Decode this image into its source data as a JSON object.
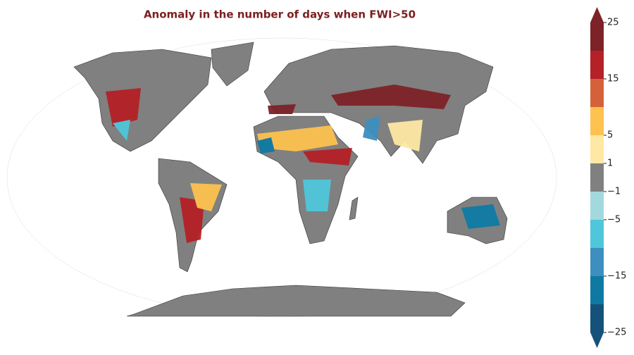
{
  "chart_data": {
    "type": "map",
    "title": "Anomaly in the number of days when FWI>50",
    "colorbar": {
      "boundaries": [
        -25,
        -20,
        -15,
        -10,
        -5,
        -1,
        1,
        5,
        10,
        15,
        20,
        25
      ],
      "colors": [
        "#15527a",
        "#0e7aa3",
        "#3d8fbf",
        "#4fc6da",
        "#a2d9de",
        "#808080",
        "#ffe8a3",
        "#fdc24f",
        "#d5613a",
        "#b42126",
        "#7d2227"
      ],
      "ticks": [
        {
          "value": -25,
          "label": "−25"
        },
        {
          "value": -15,
          "label": "−15"
        },
        {
          "value": -5,
          "label": "−5"
        },
        {
          "value": -1,
          "label": "−1"
        },
        1,
        5,
        15,
        25
      ],
      "extend": "both"
    }
  }
}
